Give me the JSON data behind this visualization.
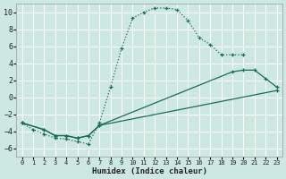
{
  "background_color": "#cce8e0",
  "grid_color": "#ffffff",
  "line_color": "#1a6b5a",
  "xlabel": "Humidex (Indice chaleur)",
  "xlim": [
    -0.5,
    23.5
  ],
  "ylim": [
    -7,
    11
  ],
  "xticks": [
    0,
    1,
    2,
    3,
    4,
    5,
    6,
    7,
    8,
    9,
    10,
    11,
    12,
    13,
    14,
    15,
    16,
    17,
    18,
    19,
    20,
    21,
    22,
    23
  ],
  "yticks": [
    -6,
    -4,
    -2,
    0,
    2,
    4,
    6,
    8,
    10
  ],
  "line0_style": "dotted",
  "lines": [
    {
      "x": [
        0,
        1,
        2,
        3,
        4,
        5,
        6,
        7,
        8,
        9,
        10,
        11,
        12,
        13,
        14,
        15,
        16,
        17,
        18,
        19,
        20
      ],
      "y": [
        -3,
        -3.8,
        -4.3,
        -4.8,
        -4.9,
        -5.2,
        -5.5,
        -3.0,
        1.2,
        5.8,
        9.3,
        10.0,
        10.5,
        10.5,
        10.3,
        9.0,
        7.0,
        6.2,
        5.0,
        5.0,
        5.0
      ]
    },
    {
      "x": [
        0,
        2,
        3,
        4,
        5,
        6,
        7,
        19,
        20,
        21,
        22,
        23
      ],
      "y": [
        -3,
        -3.8,
        -4.5,
        -4.5,
        -4.8,
        -4.5,
        -3.3,
        3.0,
        3.2,
        3.2,
        2.2,
        1.2
      ]
    },
    {
      "x": [
        0,
        2,
        3,
        4,
        5,
        6,
        7,
        23
      ],
      "y": [
        -3,
        -3.8,
        -4.5,
        -4.5,
        -4.8,
        -4.5,
        -3.3,
        0.8
      ]
    }
  ]
}
